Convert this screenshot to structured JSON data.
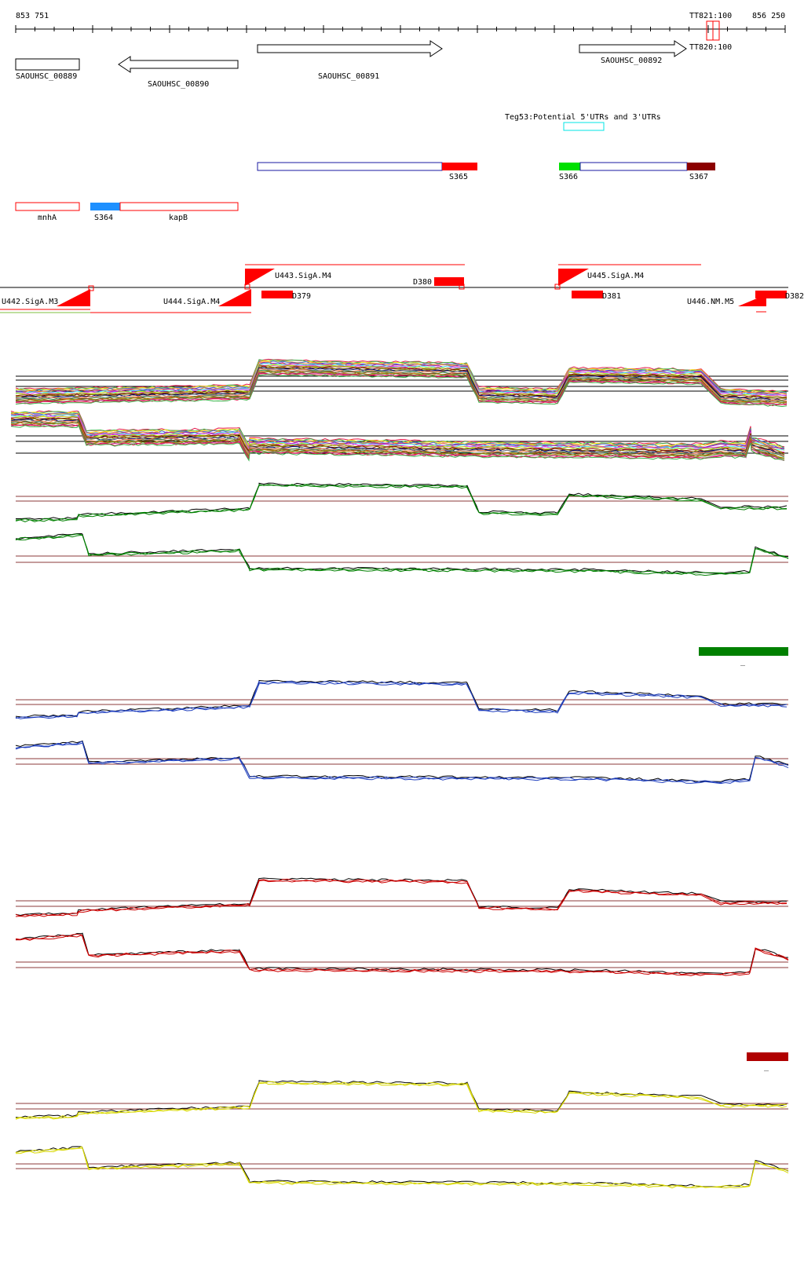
{
  "ruler": {
    "start_label": "853 751",
    "end_label": "856 250",
    "markers": [
      {
        "label": "TT821:100"
      },
      {
        "label": "TT820:100"
      }
    ]
  },
  "genes": [
    {
      "label": "SAOUHSC_00889",
      "strand": "none"
    },
    {
      "label": "SAOUHSC_00890",
      "strand": "minus"
    },
    {
      "label": "SAOUHSC_00891",
      "strand": "plus"
    },
    {
      "label": "SAOUHSC_00892",
      "strand": "plus"
    }
  ],
  "teg_features": [
    {
      "label": "Teg53:Potential 5'UTRs and 3'UTRs",
      "color": "#00e5e5"
    }
  ],
  "srna_segments": [
    {
      "label": "S365",
      "color": "#ff0000"
    },
    {
      "label": "S366",
      "color": "#00e000"
    },
    {
      "label": "S367",
      "color": "#8b0000"
    },
    {
      "label": "S364",
      "color": "#1e90ff"
    }
  ],
  "operon_genes": [
    {
      "label": "mnhA"
    },
    {
      "label": "kapB"
    }
  ],
  "promoters": [
    {
      "label": "U442.SigA.M3"
    },
    {
      "label": "U443.SigA.M4"
    },
    {
      "label": "U444.SigA.M4"
    },
    {
      "label": "U445.SigA.M4"
    },
    {
      "label": "U446.NM.M5"
    }
  ],
  "downregulated": [
    {
      "label": "D379"
    },
    {
      "label": "D380"
    },
    {
      "label": "D381"
    },
    {
      "label": "D382"
    }
  ],
  "colors": {
    "feature_red": "#ff0000",
    "threshold_line": "#8b3a3a",
    "track_green": "#008000",
    "track_blue": "#1f3fbf",
    "track_red": "#cc0000",
    "track_yellow": "#d8d800",
    "legend_green": "#008000",
    "legend_darkred": "#b00000"
  },
  "legends": {
    "green_tick": "_",
    "darkred_tick": "_"
  }
}
